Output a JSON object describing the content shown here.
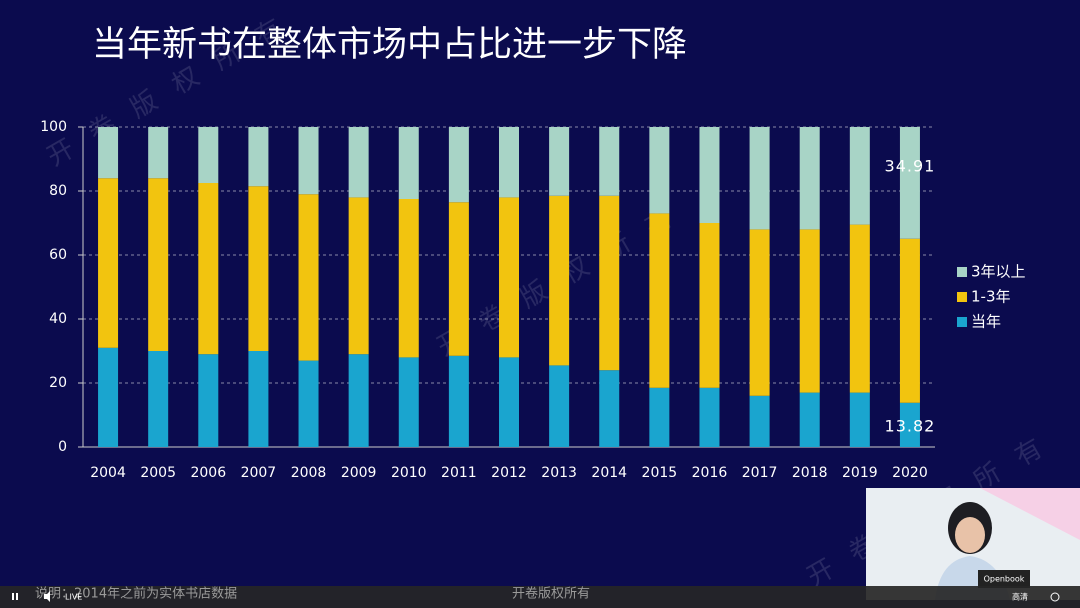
{
  "chart_data": {
    "type": "stacked_bar",
    "title": "当年新书在整体市场中占比进一步下降",
    "categories": [
      "2004",
      "2005",
      "2006",
      "2007",
      "2008",
      "2009",
      "2010",
      "2011",
      "2012",
      "2013",
      "2014",
      "2015",
      "2016",
      "2017",
      "2018",
      "2019",
      "2020"
    ],
    "series": [
      {
        "name": "当年",
        "color": "#1aa5cf",
        "values": [
          31,
          30,
          29,
          30,
          27,
          29,
          28,
          28.5,
          28,
          25.5,
          24,
          18.5,
          18.5,
          16,
          17,
          17,
          13.82
        ],
        "value_labels": [
          null,
          null,
          null,
          null,
          null,
          null,
          null,
          null,
          null,
          null,
          null,
          null,
          null,
          null,
          null,
          null,
          "13.82"
        ]
      },
      {
        "name": "1-3年",
        "color": "#f2c40f",
        "values": [
          53,
          54,
          53.5,
          51.5,
          52,
          49,
          49.5,
          48,
          50,
          53,
          54.5,
          54.5,
          51.5,
          52,
          51,
          52.5,
          51.27
        ]
      },
      {
        "name": "3年以上",
        "color": "#a8d4c6",
        "values": [
          16,
          16,
          17.5,
          18.5,
          21,
          22,
          22.5,
          23.5,
          22,
          21.5,
          21.5,
          27,
          30,
          32,
          32,
          30.5,
          34.91
        ],
        "value_labels": [
          null,
          null,
          null,
          null,
          null,
          null,
          null,
          null,
          null,
          null,
          null,
          null,
          null,
          null,
          null,
          null,
          "34.91"
        ]
      }
    ],
    "ylim": [
      0,
      100
    ],
    "yticks": [
      0,
      20,
      40,
      60,
      80,
      100
    ],
    "grid": true,
    "legend": "right"
  },
  "watermark": "开卷版权所有",
  "footer": {
    "note": "说明：2014年之前为实体书店数据",
    "live": "LIVE",
    "brand": "开卷版权所有",
    "quality": "高清"
  },
  "webcam": {
    "label": "Openbook"
  }
}
